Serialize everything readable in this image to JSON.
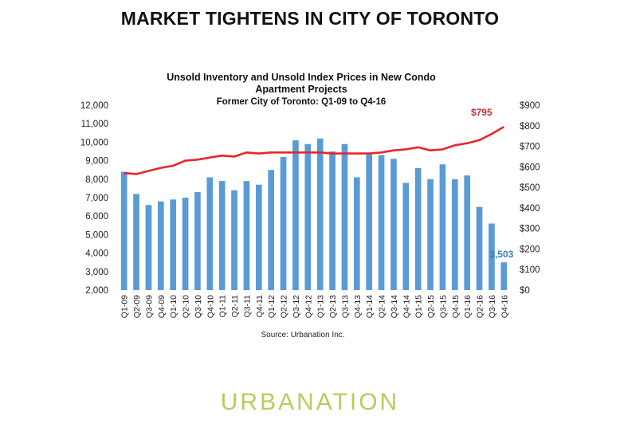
{
  "headline": "MARKET TIGHTENS IN CITY OF TORONTO",
  "brand": "URBANATION",
  "chart_data": {
    "type": "bar",
    "title": "Unsold Inventory and Unsold Index Prices in New Condo Apartment Projects",
    "title_lines": [
      "Unsold Inventory and Unsold Index Prices in New Condo",
      "Apartment Projects"
    ],
    "subtitle": "Former City of Toronto: Q1-09 to Q4-16",
    "source": "Source: Urbanation Inc.",
    "categories": [
      "Q1-09",
      "Q2-09",
      "Q3-09",
      "Q4-09",
      "Q1-10",
      "Q2-10",
      "Q3-10",
      "Q4-10",
      "Q1-11",
      "Q2-11",
      "Q3-11",
      "Q4-11",
      "Q1-12",
      "Q2-12",
      "Q3-12",
      "Q4-12",
      "Q1-13",
      "Q2-13",
      "Q3-13",
      "Q4-13",
      "Q1-14",
      "Q2-14",
      "Q3-14",
      "Q4-14",
      "Q1-15",
      "Q2-15",
      "Q3-15",
      "Q4-15",
      "Q1-16",
      "Q2-16",
      "Q3-16",
      "Q4-16"
    ],
    "x_tick_labels": [
      "Q1-09",
      "Q2-09",
      "Q3-09",
      "Q4-09",
      "Q1-10",
      "Q2-10",
      "Q3-10",
      "Q4-10",
      "Q1-11",
      "Q2-11",
      "Q3-11",
      "Q4-11",
      "Q1-12",
      "Q2-12",
      "Q3-12",
      "Q4-12",
      "Q1-13",
      "Q2-13",
      "Q3-13",
      "Q4-13",
      "Q1-14",
      "Q2-14",
      "Q3-14",
      "Q4-14",
      "Q1-15",
      "Q2-15",
      "Q3-15",
      "Q4-15",
      "Q1-16",
      "Q2-16",
      "Q3-16",
      "Q4-16"
    ],
    "series": [
      {
        "type": "bar",
        "axis": "left",
        "color": "#5b9bd5",
        "values": [
          8400,
          7200,
          6600,
          6800,
          6900,
          7000,
          7300,
          8100,
          7900,
          7400,
          7900,
          7700,
          8500,
          9200,
          10100,
          9900,
          10200,
          9500,
          9900,
          8100,
          9400,
          9300,
          9100,
          7800,
          8600,
          8000,
          8800,
          8000,
          8200,
          6500,
          5600,
          3503
        ]
      },
      {
        "type": "line",
        "axis": "right",
        "color": "#e8262b",
        "values": [
          570,
          565,
          580,
          595,
          605,
          630,
          635,
          645,
          655,
          650,
          670,
          665,
          670,
          670,
          670,
          670,
          670,
          665,
          665,
          665,
          665,
          670,
          680,
          685,
          695,
          680,
          685,
          705,
          715,
          730,
          760,
          795
        ]
      }
    ],
    "y_left": {
      "min": 2000,
      "max": 12000,
      "step": 1000
    },
    "y_right": {
      "min": 0,
      "max": 900,
      "step": 100
    },
    "y_left_tick_labels": [
      "2,000",
      "3,000",
      "4,000",
      "5,000",
      "6,000",
      "7,000",
      "8,000",
      "9,000",
      "10,000",
      "11,000",
      "12,000"
    ],
    "y_right_tick_labels": [
      "$0",
      "$100",
      "$200",
      "$300",
      "$400",
      "$500",
      "$600",
      "$700",
      "$800",
      "$900"
    ],
    "annotations": [
      {
        "text": "$795",
        "series": 1,
        "index": 31,
        "color": "#c0303a"
      },
      {
        "text": "3,503",
        "series": 0,
        "index": 31,
        "color": "#3a7fb8"
      }
    ],
    "grid": false,
    "legend": "none"
  }
}
